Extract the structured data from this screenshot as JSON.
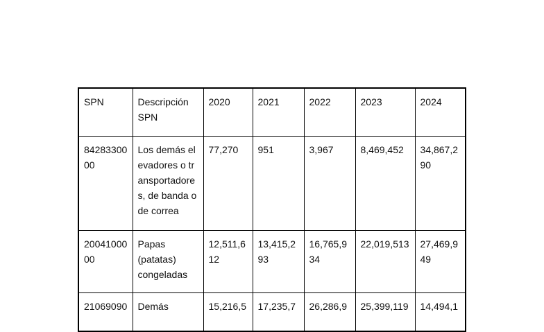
{
  "table": {
    "headers": [
      "SPN",
      "Descripción SPN",
      "2020",
      "2021",
      "2022",
      "2023",
      "2024"
    ],
    "rows": [
      [
        "8428330000",
        "Los demás elevadores o transportadores, de banda o de correa",
        "77,270",
        "951",
        "3,967",
        "8,469,452",
        "34,867,290"
      ],
      [
        "2004100000",
        "Papas (patatas) congeladas",
        "12,511,612",
        "13,415,293",
        "16,765,934",
        "22,019,513",
        "27,469,949"
      ],
      [
        "21069090",
        "Demás",
        "15,216,5",
        "17,235,7",
        "26,286,9",
        "25,399,119",
        "14,494,1"
      ]
    ]
  }
}
